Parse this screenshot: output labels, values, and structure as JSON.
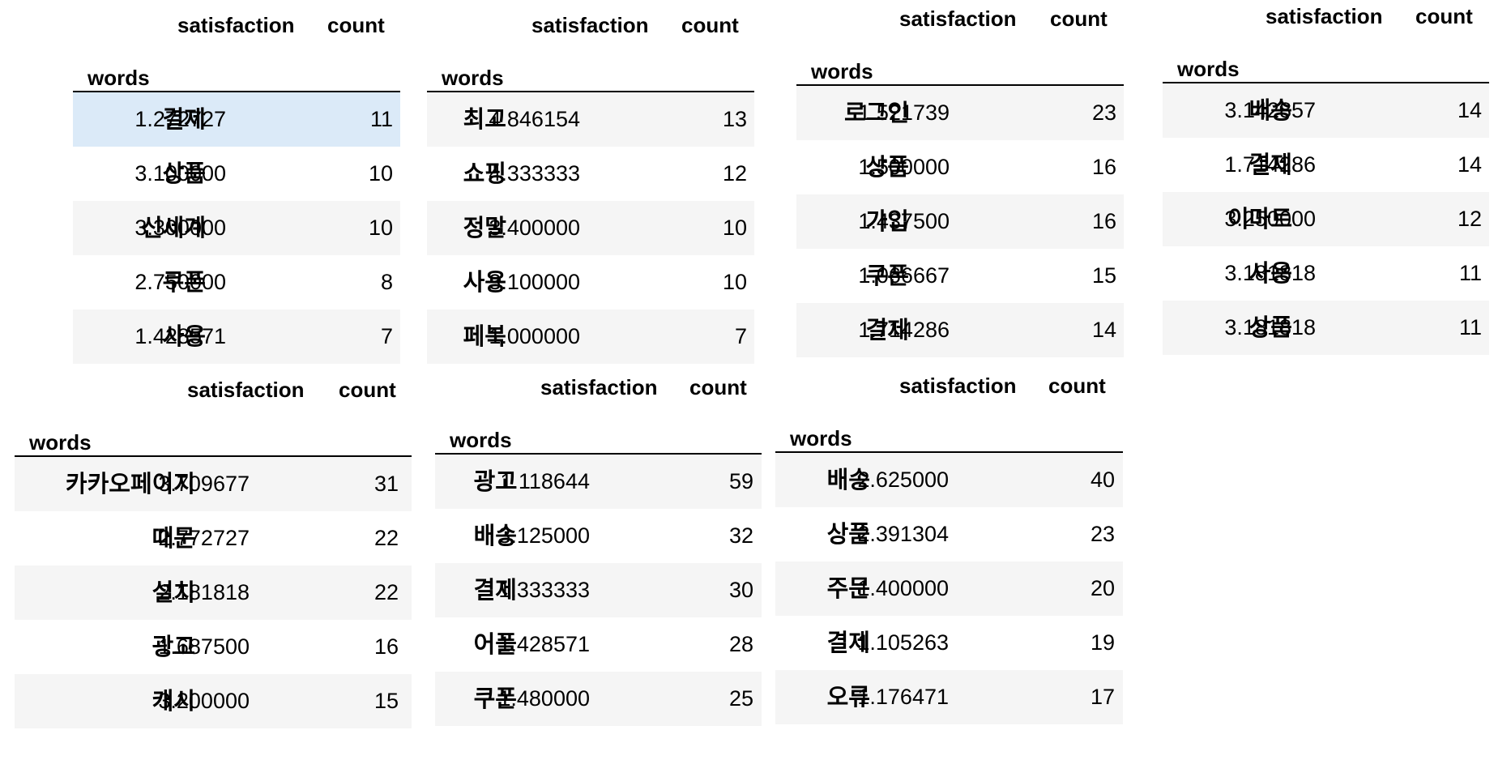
{
  "tables": [
    {
      "columns": [
        "satisfaction",
        "count"
      ],
      "index_name": "words",
      "rows": [
        {
          "word": "결제",
          "satisfaction": "1.272727",
          "count": "11"
        },
        {
          "word": "상품",
          "satisfaction": "3.100000",
          "count": "10"
        },
        {
          "word": "신세계",
          "satisfaction": "3.300000",
          "count": "10"
        },
        {
          "word": "쿠폰",
          "satisfaction": "2.750000",
          "count": "8"
        },
        {
          "word": "사용",
          "satisfaction": "1.428571",
          "count": "7"
        }
      ]
    },
    {
      "columns": [
        "satisfaction",
        "count"
      ],
      "index_name": "words",
      "rows": [
        {
          "word": "최고",
          "satisfaction": "4.846154",
          "count": "13"
        },
        {
          "word": "쇼핑",
          "satisfaction": "4.333333",
          "count": "12"
        },
        {
          "word": "정말",
          "satisfaction": "3.400000",
          "count": "10"
        },
        {
          "word": "사용",
          "satisfaction": "3.100000",
          "count": "10"
        },
        {
          "word": "페북",
          "satisfaction": "1.000000",
          "count": "7"
        }
      ]
    },
    {
      "columns": [
        "satisfaction",
        "count"
      ],
      "index_name": "words",
      "rows": [
        {
          "word": "로그인",
          "satisfaction": "1.521739",
          "count": "23"
        },
        {
          "word": "상품",
          "satisfaction": "1.500000",
          "count": "16"
        },
        {
          "word": "가입",
          "satisfaction": "1.437500",
          "count": "16"
        },
        {
          "word": "쿠폰",
          "satisfaction": "1.066667",
          "count": "15"
        },
        {
          "word": "결제",
          "satisfaction": "1.714286",
          "count": "14"
        }
      ]
    },
    {
      "columns": [
        "satisfaction",
        "count"
      ],
      "index_name": "words",
      "rows": [
        {
          "word": "배송",
          "satisfaction": "3.142857",
          "count": "14"
        },
        {
          "word": "결제",
          "satisfaction": "1.714286",
          "count": "14"
        },
        {
          "word": "이마트",
          "satisfaction": "3.250000",
          "count": "12"
        },
        {
          "word": "사용",
          "satisfaction": "3.181818",
          "count": "11"
        },
        {
          "word": "상품",
          "satisfaction": "3.181818",
          "count": "11"
        }
      ]
    },
    {
      "columns": [
        "satisfaction",
        "count"
      ],
      "index_name": "words",
      "rows": [
        {
          "word": "카카오페이지",
          "satisfaction": "3.709677",
          "count": "31"
        },
        {
          "word": "때문",
          "satisfaction": "2.772727",
          "count": "22"
        },
        {
          "word": "설치",
          "satisfaction": "2.181818",
          "count": "22"
        },
        {
          "word": "광고",
          "satisfaction": "1.687500",
          "count": "16"
        },
        {
          "word": "캐시",
          "satisfaction": "3.200000",
          "count": "15"
        }
      ]
    },
    {
      "columns": [
        "satisfaction",
        "count"
      ],
      "index_name": "words",
      "rows": [
        {
          "word": "광고",
          "satisfaction": "1.118644",
          "count": "59"
        },
        {
          "word": "배송",
          "satisfaction": "3.125000",
          "count": "32"
        },
        {
          "word": "결제",
          "satisfaction": "1.333333",
          "count": "30"
        },
        {
          "word": "어플",
          "satisfaction": "1.428571",
          "count": "28"
        },
        {
          "word": "쿠폰",
          "satisfaction": "1.480000",
          "count": "25"
        }
      ]
    },
    {
      "columns": [
        "satisfaction",
        "count"
      ],
      "index_name": "words",
      "rows": [
        {
          "word": "배송",
          "satisfaction": "2.625000",
          "count": "40"
        },
        {
          "word": "상품",
          "satisfaction": "2.391304",
          "count": "23"
        },
        {
          "word": "주문",
          "satisfaction": "1.400000",
          "count": "20"
        },
        {
          "word": "결제",
          "satisfaction": "1.105263",
          "count": "19"
        },
        {
          "word": "오류",
          "satisfaction": "1.176471",
          "count": "17"
        }
      ]
    }
  ],
  "highlighted_cell": {
    "table": 0,
    "row": 0
  },
  "colors": {
    "highlight_row": "#dbeaf8",
    "striped_row": "#f5f5f5",
    "rule": "#000000"
  }
}
